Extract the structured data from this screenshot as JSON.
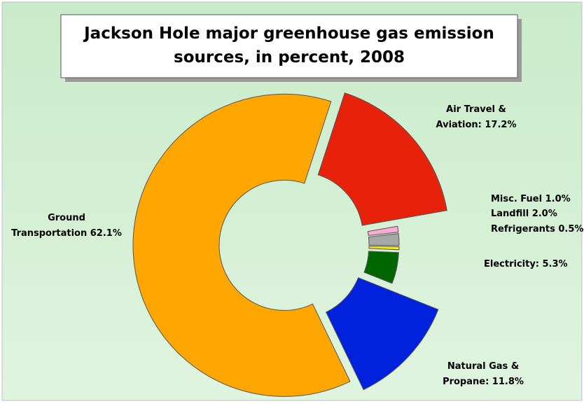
{
  "chart_data": {
    "type": "pie",
    "style": "donut-exploded",
    "title_line1": "Jackson Hole major greenhouse gas emission",
    "title_line2": "sources, in percent, 2008",
    "slices": [
      {
        "key": "air-travel",
        "label_lines": [
          "Air Travel &",
          "Aviation: 17.2%"
        ],
        "value": 17.2,
        "color": "#e8210a"
      },
      {
        "key": "misc-fuel",
        "label_lines": [
          "Misc. Fuel 1.0%"
        ],
        "value": 1.0,
        "color": "#ffaad2"
      },
      {
        "key": "landfill",
        "label_lines": [
          "Landfill 2.0%"
        ],
        "value": 2.0,
        "color": "#a7a7a7"
      },
      {
        "key": "refrigerants",
        "label_lines": [
          "Refrigerants 0.5%"
        ],
        "value": 0.5,
        "color": "#ffef00"
      },
      {
        "key": "electricity",
        "label_lines": [
          "Electricity: 5.3%"
        ],
        "value": 5.3,
        "color": "#006600"
      },
      {
        "key": "natural-gas",
        "label_lines": [
          "Natural Gas &",
          "Propane: 11.8%"
        ],
        "value": 11.8,
        "color": "#0022dd"
      },
      {
        "key": "ground-transportation",
        "label_lines": [
          "Ground",
          "Transportation 62.1%"
        ],
        "value": 62.1,
        "color": "#ffa600"
      }
    ],
    "background_color": "#d5f0d5",
    "legend": "none"
  }
}
